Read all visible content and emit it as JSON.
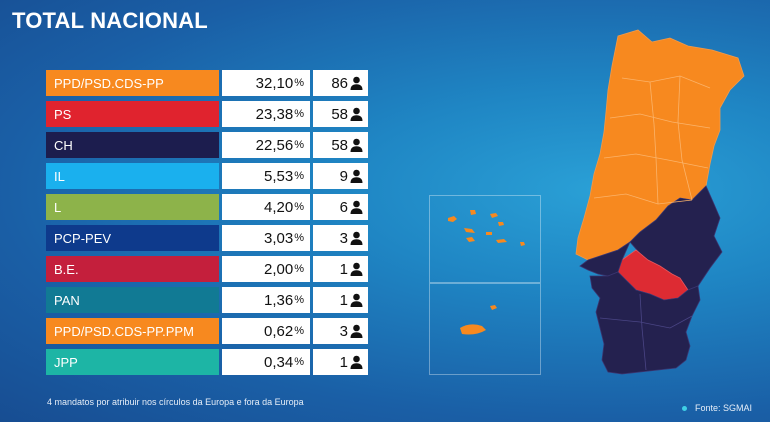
{
  "title": "TOTAL NACIONAL",
  "results": [
    {
      "party": "PPD/PSD.CDS-PP",
      "pct": "32,10",
      "seats": "86",
      "color": "#f7891f"
    },
    {
      "party": "PS",
      "pct": "23,38",
      "seats": "58",
      "color": "#e0232e"
    },
    {
      "party": "CH",
      "pct": "22,56",
      "seats": "58",
      "color": "#1c1d4e"
    },
    {
      "party": "IL",
      "pct": "5,53",
      "seats": "9",
      "color": "#1ab0ee"
    },
    {
      "party": "L",
      "pct": "4,20",
      "seats": "6",
      "color": "#8db34a"
    },
    {
      "party": "PCP-PEV",
      "pct": "3,03",
      "seats": "3",
      "color": "#0e3a8c"
    },
    {
      "party": "B.E.",
      "pct": "2,00",
      "seats": "1",
      "color": "#c41f3c"
    },
    {
      "party": "PAN",
      "pct": "1,36",
      "seats": "1",
      "color": "#117a94"
    },
    {
      "party": "PPD/PSD.CDS-PP.PPM",
      "pct": "0,62",
      "seats": "3",
      "color": "#f7891f"
    },
    {
      "party": "JPP",
      "pct": "0,34",
      "seats": "1",
      "color": "#1db5a5"
    }
  ],
  "percent_symbol": "%",
  "seat_icon": "person-icon",
  "footnote": "4 mandatos por atribuir nos círculos da Europa e fora da Europa",
  "source": "Fonte: SGMAI",
  "map_colors": {
    "orange": "#f7891f",
    "navy": "#24214f",
    "red": "#dd2b33"
  }
}
